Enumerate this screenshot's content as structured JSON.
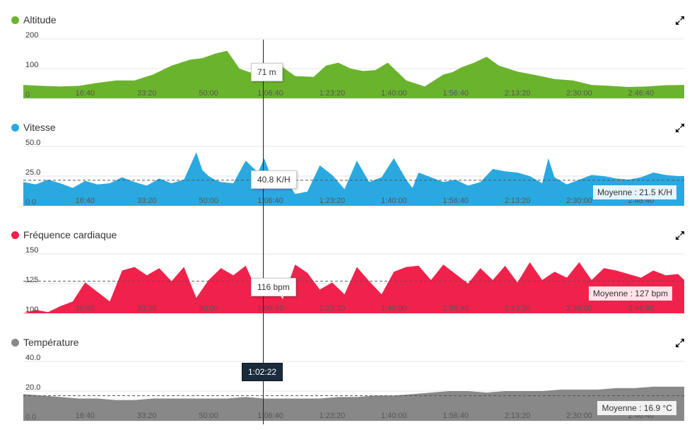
{
  "panels": [
    {
      "key": "altitude",
      "title": "Altitude",
      "color": "#6ab42d",
      "expand_icon": "expand-arrows-icon",
      "tooltip": "71 m",
      "average": null
    },
    {
      "key": "vitesse",
      "title": "Vitesse",
      "color": "#2aa9e1",
      "expand_icon": "expand-arrows-icon",
      "tooltip": "40.8 K/H",
      "average": "Moyenne : 21.5 K/H"
    },
    {
      "key": "frequence",
      "title": "Fréquence cardiaque",
      "color": "#f0224b",
      "expand_icon": "expand-arrows-icon",
      "tooltip": "116 bpm",
      "average": "Moyenne : 127 bpm"
    },
    {
      "key": "temperature",
      "title": "Température",
      "color": "#888888",
      "expand_icon": "expand-arrows-icon",
      "tooltip": null,
      "average": "Moyenne : 16.9 °C"
    }
  ],
  "crosshair_time": "1:02:22",
  "chart_data": [
    {
      "type": "area",
      "title": "Altitude",
      "x_ticks": [
        "16:40",
        "33:20",
        "50:00",
        "1:06:40",
        "1:23:20",
        "1:40:00",
        "1:56:40",
        "2:13:20",
        "2:30:00",
        "2:46:40"
      ],
      "y_ticks": [
        "0",
        "100",
        "200"
      ],
      "ylim": [
        0,
        200
      ],
      "xlim_seconds": [
        0,
        10700
      ],
      "x_seconds": [
        0,
        300,
        600,
        900,
        1200,
        1500,
        1800,
        2100,
        2400,
        2700,
        2900,
        3100,
        3300,
        3500,
        3700,
        3900,
        4100,
        4400,
        4700,
        4900,
        5100,
        5300,
        5500,
        5700,
        5900,
        6200,
        6500,
        6800,
        6950,
        7100,
        7300,
        7500,
        7700,
        8000,
        8300,
        8600,
        8900,
        9200,
        9500,
        9800,
        10100,
        10400,
        10700
      ],
      "values": [
        45,
        42,
        40,
        42,
        52,
        60,
        60,
        80,
        110,
        130,
        135,
        150,
        160,
        100,
        85,
        105,
        120,
        75,
        72,
        110,
        120,
        100,
        92,
        95,
        120,
        60,
        40,
        80,
        88,
        105,
        120,
        140,
        110,
        90,
        78,
        65,
        60,
        45,
        42,
        38,
        40,
        44,
        45
      ]
    },
    {
      "type": "area",
      "title": "Vitesse",
      "x_ticks": [
        "16:40",
        "33:20",
        "50:00",
        "1:06:40",
        "1:23:20",
        "1:40:00",
        "1:56:40",
        "2:13:20",
        "2:30:00",
        "2:46:40"
      ],
      "y_ticks": [
        "0.0",
        "25.0",
        "50.0"
      ],
      "ylim": [
        0,
        50
      ],
      "xlim_seconds": [
        0,
        10700
      ],
      "average": 21.5,
      "x_seconds": [
        0,
        200,
        400,
        600,
        800,
        1000,
        1200,
        1400,
        1600,
        1800,
        2000,
        2200,
        2400,
        2600,
        2800,
        2900,
        3000,
        3100,
        3200,
        3400,
        3600,
        3800,
        3900,
        4000,
        4100,
        4200,
        4300,
        4400,
        4600,
        4800,
        4900,
        5000,
        5200,
        5400,
        5600,
        5800,
        6000,
        6200,
        6300,
        6400,
        6600,
        6800,
        7000,
        7200,
        7400,
        7600,
        7800,
        8000,
        8200,
        8400,
        8500,
        8600,
        8800,
        9000,
        9200,
        9400,
        9600,
        9800,
        10000,
        10200,
        10400,
        10600,
        10700
      ],
      "values": [
        20,
        18,
        22,
        19,
        15,
        21,
        18,
        19,
        24,
        20,
        17,
        23,
        19,
        22,
        45,
        30,
        25,
        22,
        20,
        19,
        38,
        28,
        40,
        26,
        22,
        25,
        18,
        10,
        12,
        34,
        30,
        26,
        14,
        38,
        20,
        24,
        40,
        22,
        15,
        28,
        24,
        20,
        22,
        17,
        20,
        31,
        29,
        28,
        25,
        19,
        40,
        24,
        18,
        22,
        26,
        25,
        23,
        22,
        24,
        28,
        26,
        25,
        25
      ]
    },
    {
      "type": "area",
      "title": "Fréquence cardiaque",
      "x_ticks": [
        "16:40",
        "33:20",
        "50:00",
        "1:06:40",
        "1:23:20",
        "1:40:00",
        "1:56:40",
        "2:13:20",
        "2:30:00",
        "2:46:40"
      ],
      "y_ticks": [
        "100",
        "125",
        "150"
      ],
      "ylim": [
        100,
        150
      ],
      "xlim_seconds": [
        0,
        10700
      ],
      "average": 127,
      "x_seconds": [
        0,
        200,
        400,
        600,
        800,
        1000,
        1200,
        1400,
        1600,
        1800,
        2000,
        2200,
        2400,
        2600,
        2800,
        3000,
        3200,
        3400,
        3600,
        3800,
        4000,
        4200,
        4400,
        4600,
        4800,
        5000,
        5200,
        5400,
        5600,
        5800,
        6000,
        6200,
        6400,
        6600,
        6800,
        7000,
        7200,
        7400,
        7600,
        7800,
        8000,
        8200,
        8400,
        8600,
        8800,
        9000,
        9200,
        9400,
        9600,
        9800,
        10000,
        10200,
        10400,
        10600,
        10700
      ],
      "values": [
        100,
        103,
        101,
        106,
        110,
        126,
        118,
        110,
        136,
        139,
        132,
        138,
        127,
        139,
        113,
        128,
        138,
        132,
        140,
        117,
        126,
        112,
        141,
        134,
        120,
        126,
        116,
        139,
        127,
        116,
        135,
        139,
        140,
        128,
        141,
        133,
        125,
        138,
        128,
        140,
        126,
        143,
        128,
        135,
        130,
        143,
        128,
        138,
        136,
        133,
        130,
        136,
        132,
        133,
        128
      ]
    },
    {
      "type": "area",
      "title": "Température",
      "x_ticks": [
        "16:40",
        "33:20",
        "50:00",
        "1:06:40",
        "1:23:20",
        "1:40:00",
        "1:56:40",
        "2:13:20",
        "2:30:00",
        "2:46:40"
      ],
      "y_ticks": [
        "0.0",
        "20.0",
        "40.0"
      ],
      "ylim": [
        0,
        40
      ],
      "xlim_seconds": [
        0,
        10700
      ],
      "average": 16.9,
      "x_seconds": [
        0,
        300,
        600,
        900,
        1200,
        1500,
        1800,
        2100,
        2400,
        2700,
        3000,
        3300,
        3600,
        3900,
        4200,
        4500,
        4800,
        5100,
        5400,
        5700,
        6000,
        6300,
        6600,
        6900,
        7200,
        7500,
        7800,
        8100,
        8400,
        8700,
        9000,
        9300,
        9600,
        9900,
        10200,
        10500,
        10700
      ],
      "values": [
        18,
        17,
        16,
        15,
        15,
        14,
        14,
        15,
        15,
        15,
        15,
        15,
        16,
        15,
        15,
        15,
        15,
        16,
        16,
        17,
        17,
        18,
        19,
        20,
        20,
        19,
        20,
        20,
        20,
        21,
        21,
        21,
        22,
        22,
        23,
        23,
        23
      ]
    }
  ]
}
